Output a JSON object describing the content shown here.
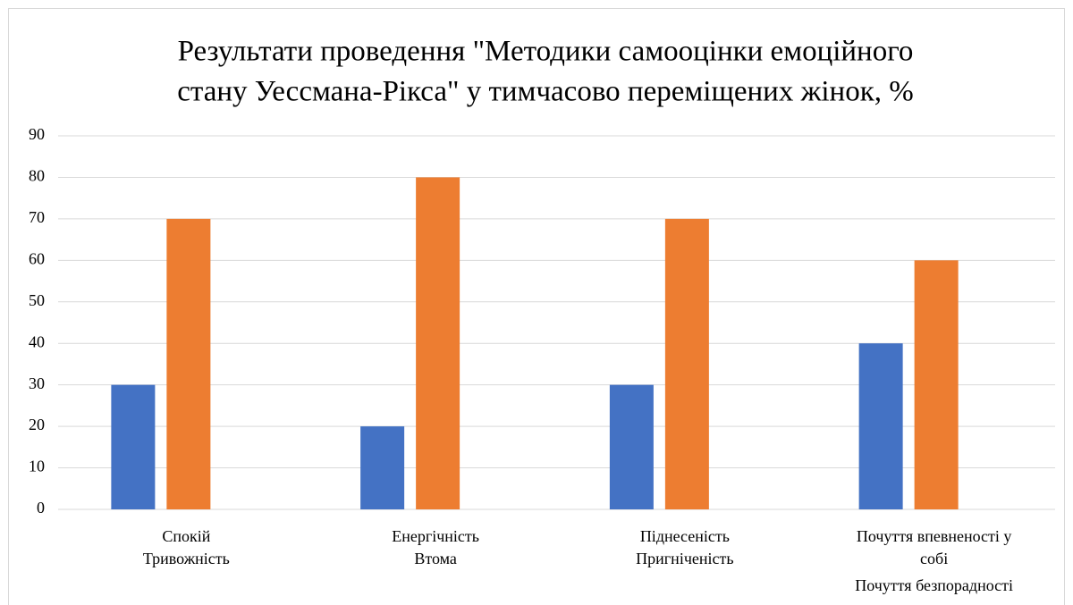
{
  "chart_data": {
    "type": "bar",
    "title": [
      "Результати проведення \"Методики самооцінки емоційного",
      "стану Уессмана-Рікса\" у тимчасово переміщених жінок, %"
    ],
    "categories": [
      [
        "Спокій",
        "Тривожність"
      ],
      [
        "Енергічність",
        "Втома"
      ],
      [
        "Піднесеність",
        "Пригніченість"
      ],
      [
        "Почуття впевненості у",
        "собі",
        "Почуття безпорадності"
      ]
    ],
    "series": [
      {
        "color": "#4472c4",
        "values": [
          30,
          20,
          30,
          40
        ]
      },
      {
        "color": "#ed7d31",
        "values": [
          70,
          80,
          70,
          60
        ]
      }
    ],
    "ylim": [
      0,
      90
    ],
    "yticks": [
      0,
      10,
      20,
      30,
      40,
      50,
      60,
      70,
      80,
      90
    ],
    "grid": true
  }
}
